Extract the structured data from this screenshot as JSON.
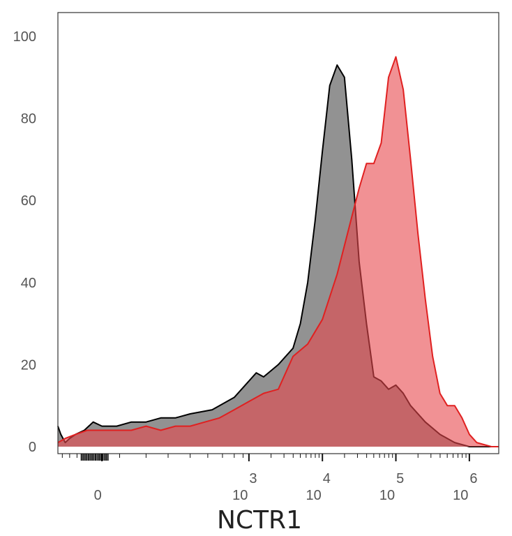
{
  "chart_data": {
    "type": "area",
    "title": "",
    "xlabel": "NCTR1",
    "ylabel": "",
    "x_scale": "biexponential",
    "ylim": [
      0,
      105
    ],
    "grid": false,
    "y_ticks": [
      0,
      20,
      40,
      60,
      80,
      100
    ],
    "x_tick_labels": [
      {
        "base": "0",
        "exp": ""
      },
      {
        "base": "10",
        "exp": "3"
      },
      {
        "base": "10",
        "exp": "4"
      },
      {
        "base": "10",
        "exp": "5"
      },
      {
        "base": "10",
        "exp": "6"
      }
    ],
    "series": [
      {
        "color": "#000000",
        "fill": "#7f7f7f",
        "points": [
          [
            -0.3,
            5
          ],
          [
            -0.28,
            3
          ],
          [
            -0.25,
            1
          ],
          [
            -0.22,
            2
          ],
          [
            -0.18,
            3
          ],
          [
            -0.12,
            4
          ],
          [
            -0.06,
            6
          ],
          [
            0.0,
            5
          ],
          [
            0.1,
            5
          ],
          [
            0.2,
            6
          ],
          [
            0.3,
            6
          ],
          [
            0.4,
            7
          ],
          [
            0.5,
            7
          ],
          [
            0.6,
            8
          ],
          [
            0.75,
            9
          ],
          [
            0.9,
            12
          ],
          [
            1.0,
            16
          ],
          [
            1.05,
            18
          ],
          [
            1.1,
            17
          ],
          [
            1.2,
            20
          ],
          [
            1.3,
            24
          ],
          [
            1.35,
            30
          ],
          [
            1.4,
            40
          ],
          [
            1.45,
            55
          ],
          [
            1.5,
            72
          ],
          [
            1.55,
            88
          ],
          [
            1.6,
            93
          ],
          [
            1.65,
            90
          ],
          [
            1.7,
            70
          ],
          [
            1.75,
            45
          ],
          [
            1.8,
            30
          ],
          [
            1.85,
            17
          ],
          [
            1.9,
            16
          ],
          [
            1.95,
            14
          ],
          [
            2.0,
            15
          ],
          [
            2.05,
            13
          ],
          [
            2.1,
            10
          ],
          [
            2.2,
            6
          ],
          [
            2.3,
            3
          ],
          [
            2.4,
            1
          ],
          [
            2.5,
            0
          ],
          [
            2.7,
            0
          ]
        ]
      },
      {
        "color": "#e02020",
        "fill": "#e8484c",
        "points": [
          [
            -0.3,
            1
          ],
          [
            -0.25,
            2
          ],
          [
            -0.18,
            3
          ],
          [
            -0.1,
            4
          ],
          [
            0.0,
            4
          ],
          [
            0.1,
            4
          ],
          [
            0.2,
            4
          ],
          [
            0.3,
            5
          ],
          [
            0.4,
            4
          ],
          [
            0.5,
            5
          ],
          [
            0.6,
            5
          ],
          [
            0.7,
            6
          ],
          [
            0.8,
            7
          ],
          [
            0.9,
            9
          ],
          [
            1.0,
            11
          ],
          [
            1.1,
            13
          ],
          [
            1.2,
            14
          ],
          [
            1.3,
            22
          ],
          [
            1.4,
            25
          ],
          [
            1.5,
            31
          ],
          [
            1.6,
            42
          ],
          [
            1.7,
            56
          ],
          [
            1.75,
            63
          ],
          [
            1.8,
            69
          ],
          [
            1.85,
            69
          ],
          [
            1.9,
            74
          ],
          [
            1.95,
            90
          ],
          [
            2.0,
            95
          ],
          [
            2.05,
            87
          ],
          [
            2.1,
            70
          ],
          [
            2.15,
            52
          ],
          [
            2.2,
            36
          ],
          [
            2.25,
            22
          ],
          [
            2.3,
            13
          ],
          [
            2.35,
            10
          ],
          [
            2.4,
            10
          ],
          [
            2.45,
            7
          ],
          [
            2.5,
            3
          ],
          [
            2.55,
            1
          ],
          [
            2.65,
            0
          ],
          [
            2.7,
            0
          ]
        ]
      }
    ]
  }
}
